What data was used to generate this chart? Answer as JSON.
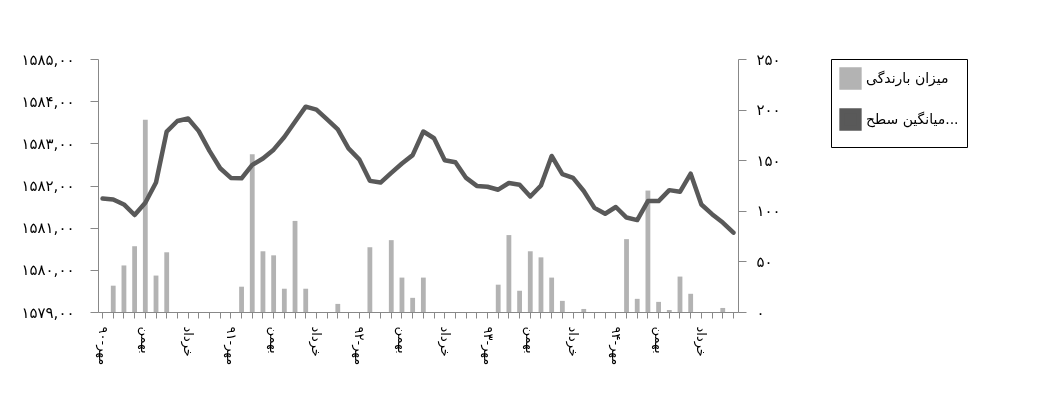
{
  "chart_data": {
    "type": "bar",
    "categories": [
      "مهر-۹۰",
      null,
      null,
      null,
      "بهمن",
      null,
      null,
      null,
      "خرداد",
      null,
      null,
      null,
      "مهر-۹۱",
      null,
      null,
      null,
      "بهمن",
      null,
      null,
      null,
      "خرداد",
      null,
      null,
      null,
      "مهر-۹۲",
      null,
      null,
      null,
      "بهمن",
      null,
      null,
      null,
      "خرداد",
      null,
      null,
      null,
      "مهر-۹۳",
      null,
      null,
      null,
      "بهمن",
      null,
      null,
      null,
      "خرداد",
      null,
      null,
      null,
      "مهر-۹۴",
      null,
      null,
      null,
      "بهمن",
      null,
      null,
      null,
      "خرداد",
      null,
      null,
      null
    ],
    "series": [
      {
        "name": "میزان بارندگی",
        "axis": "y2",
        "color": "#b3b3b3",
        "values": [
          0,
          26,
          46,
          65,
          190,
          36,
          59,
          0,
          0,
          0,
          0,
          0,
          0,
          25,
          156,
          60,
          56,
          23,
          90,
          23,
          0,
          0,
          8,
          0,
          0,
          64,
          0,
          71,
          34,
          14,
          34,
          0,
          0,
          0,
          0,
          0,
          0,
          27,
          76,
          21,
          60,
          54,
          34,
          11,
          0,
          3,
          0,
          0,
          0,
          72,
          13,
          120,
          10,
          2,
          35,
          18,
          0,
          0,
          4,
          0
        ]
      },
      {
        "name": "میانگین سطح...",
        "type": "line",
        "color": "#595959",
        "values": [
          1581.69,
          1581.67,
          1581.55,
          1581.3,
          1581.59,
          1582.07,
          1583.28,
          1583.53,
          1583.59,
          1583.29,
          1582.82,
          1582.41,
          1582.18,
          1582.17,
          1582.49,
          1582.64,
          1582.85,
          1583.15,
          1583.51,
          1583.87,
          1583.8,
          1583.57,
          1583.33,
          1582.88,
          1582.62,
          1582.11,
          1582.07,
          1582.3,
          1582.52,
          1582.72,
          1583.28,
          1583.12,
          1582.6,
          1582.55,
          1582.18,
          1581.99,
          1581.97,
          1581.9,
          1582.06,
          1582.02,
          1581.74,
          1582,
          1582.7,
          1582.27,
          1582.18,
          1581.87,
          1581.47,
          1581.33,
          1581.49,
          1581.24,
          1581.18,
          1581.63,
          1581.63,
          1581.89,
          1581.85,
          1582.28,
          1581.55,
          1581.32,
          1581.12,
          1580.88
        ]
      }
    ],
    "ylim": [
      1579,
      1585
    ],
    "yticks": [
      {
        "value": 1579,
        "label": "۱۵۷۹,۰۰"
      },
      {
        "value": 1580,
        "label": "۱۵۸۰,۰۰"
      },
      {
        "value": 1581,
        "label": "۱۵۸۱,۰۰"
      },
      {
        "value": 1582,
        "label": "۱۵۸۲,۰۰"
      },
      {
        "value": 1583,
        "label": "۱۵۸۳,۰۰"
      },
      {
        "value": 1584,
        "label": "۱۵۸۴,۰۰"
      },
      {
        "value": 1585,
        "label": "۱۵۸۵,۰۰"
      }
    ],
    "y2lim": [
      0,
      250
    ],
    "y2ticks": [
      {
        "value": 0,
        "label": "۰"
      },
      {
        "value": 50,
        "label": "۵۰"
      },
      {
        "value": 100,
        "label": "۱۰۰"
      },
      {
        "value": 150,
        "label": "۱۵۰"
      },
      {
        "value": 200,
        "label": "۲۰۰"
      },
      {
        "value": 250,
        "label": "۲۵۰"
      }
    ],
    "legend": "right",
    "grid": false
  }
}
